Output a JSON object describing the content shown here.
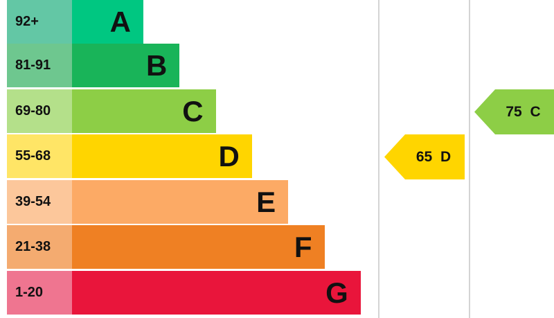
{
  "chart_data": {
    "type": "bar",
    "title": "",
    "bands": [
      {
        "range": "92+",
        "letter": "A",
        "color": "#00c781",
        "label_color": "#63c7a5"
      },
      {
        "range": "81-91",
        "letter": "B",
        "color": "#19b459",
        "label_color": "#6ec78f"
      },
      {
        "range": "69-80",
        "letter": "C",
        "color": "#8dce46",
        "label_color": "#b4e08a"
      },
      {
        "range": "55-68",
        "letter": "D",
        "color": "#ffd500",
        "label_color": "#ffe566"
      },
      {
        "range": "39-54",
        "letter": "E",
        "color": "#fcaa65",
        "label_color": "#fcc79b"
      },
      {
        "range": "21-38",
        "letter": "F",
        "color": "#ef8023",
        "label_color": "#f4ab70"
      },
      {
        "range": "1-20",
        "letter": "G",
        "color": "#e9153b",
        "label_color": "#ef7590"
      }
    ],
    "ratings": [
      {
        "label": "65 D",
        "value": 65,
        "band": "D",
        "color": "#ffd500"
      },
      {
        "label": "75 C",
        "value": 75,
        "band": "C",
        "color": "#8dce46"
      }
    ]
  }
}
